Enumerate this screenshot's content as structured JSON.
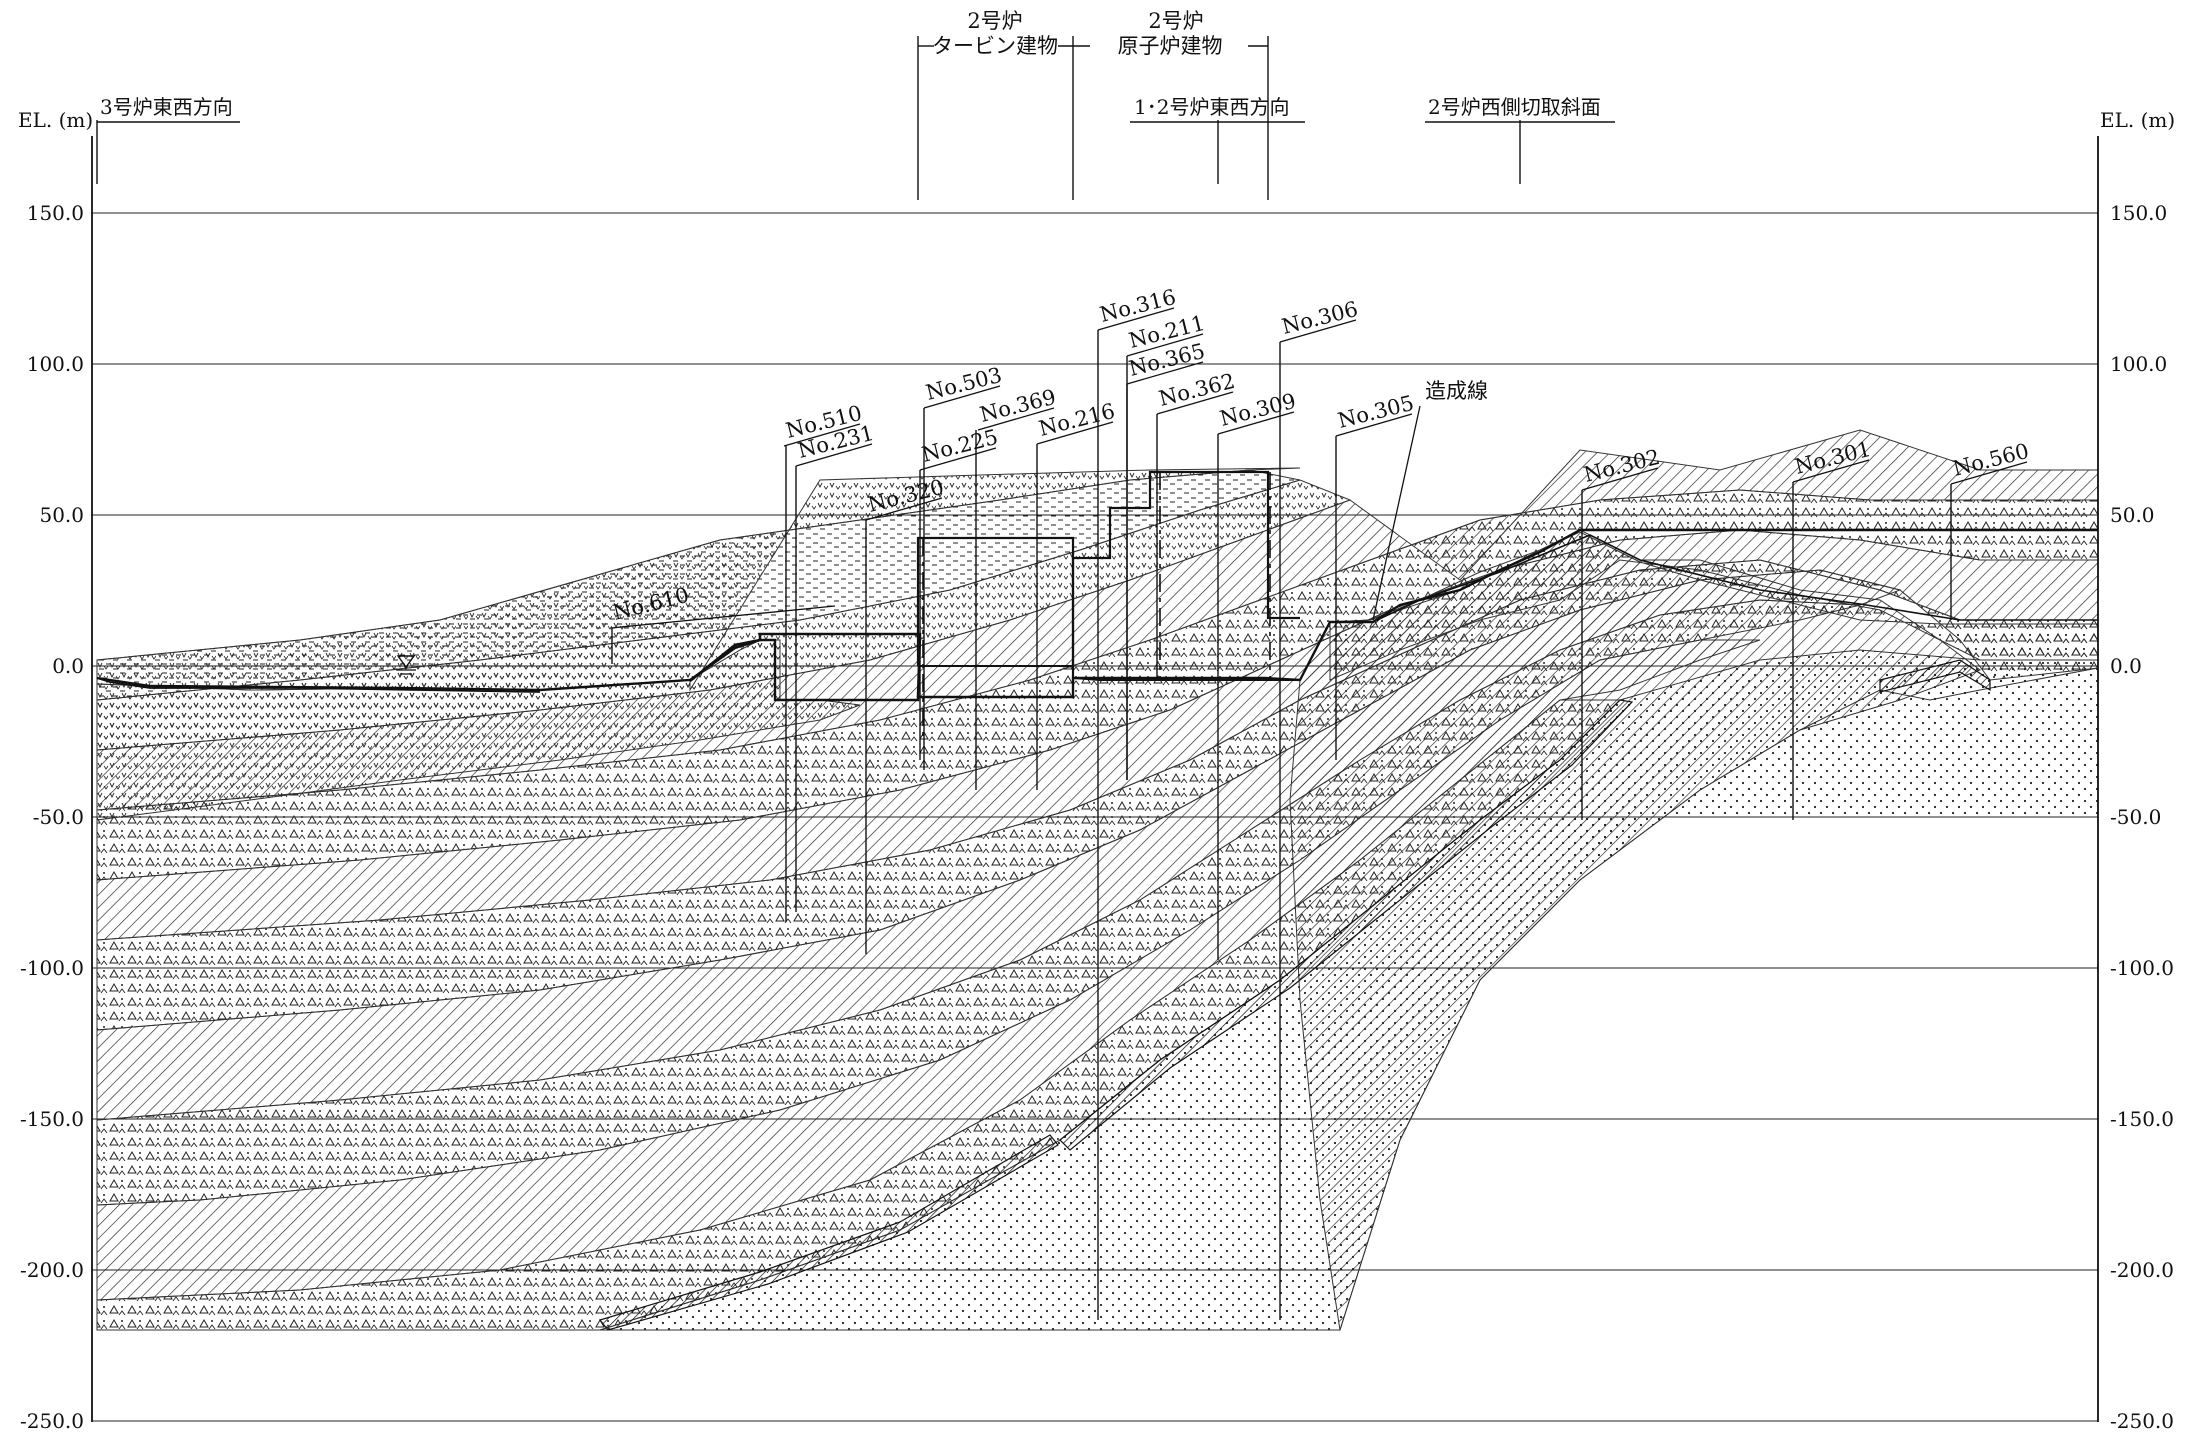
{
  "axis": {
    "unit_label_left": "EL. (m)",
    "unit_label_right": "EL. (m)",
    "ticks": [
      "150.0",
      "100.0",
      "50.0",
      "0.0",
      "-50.0",
      "-100.0",
      "-150.0",
      "-200.0",
      "-250.0"
    ],
    "elevations": [
      150,
      100,
      50,
      0,
      -50,
      -100,
      -150,
      -200,
      -250
    ]
  },
  "reference_lines": [
    {
      "label": "3号炉東西方向"
    },
    {
      "label": "1･2号炉東西方向"
    },
    {
      "label": "2号炉西側切取斜面"
    }
  ],
  "buildings": [
    {
      "line1": "2号炉",
      "line2": "タービン建物"
    },
    {
      "line1": "2号炉",
      "line2": "原子炉建物"
    }
  ],
  "annotation": {
    "label": "造成線"
  },
  "boreholes": [
    {
      "label": "No.610"
    },
    {
      "label": "No.510"
    },
    {
      "label": "No.231"
    },
    {
      "label": "No.320"
    },
    {
      "label": "No.503"
    },
    {
      "label": "No.225"
    },
    {
      "label": "No.369"
    },
    {
      "label": "No.216"
    },
    {
      "label": "No.316"
    },
    {
      "label": "No.211"
    },
    {
      "label": "No.365"
    },
    {
      "label": "No.362"
    },
    {
      "label": "No.309"
    },
    {
      "label": "No.306"
    },
    {
      "label": "No.305"
    },
    {
      "label": "No.302"
    },
    {
      "label": "No.301"
    },
    {
      "label": "No.560"
    }
  ],
  "colors": {
    "ink": "#111111",
    "background": "#ffffff"
  },
  "water_symbol": "water-level-icon"
}
